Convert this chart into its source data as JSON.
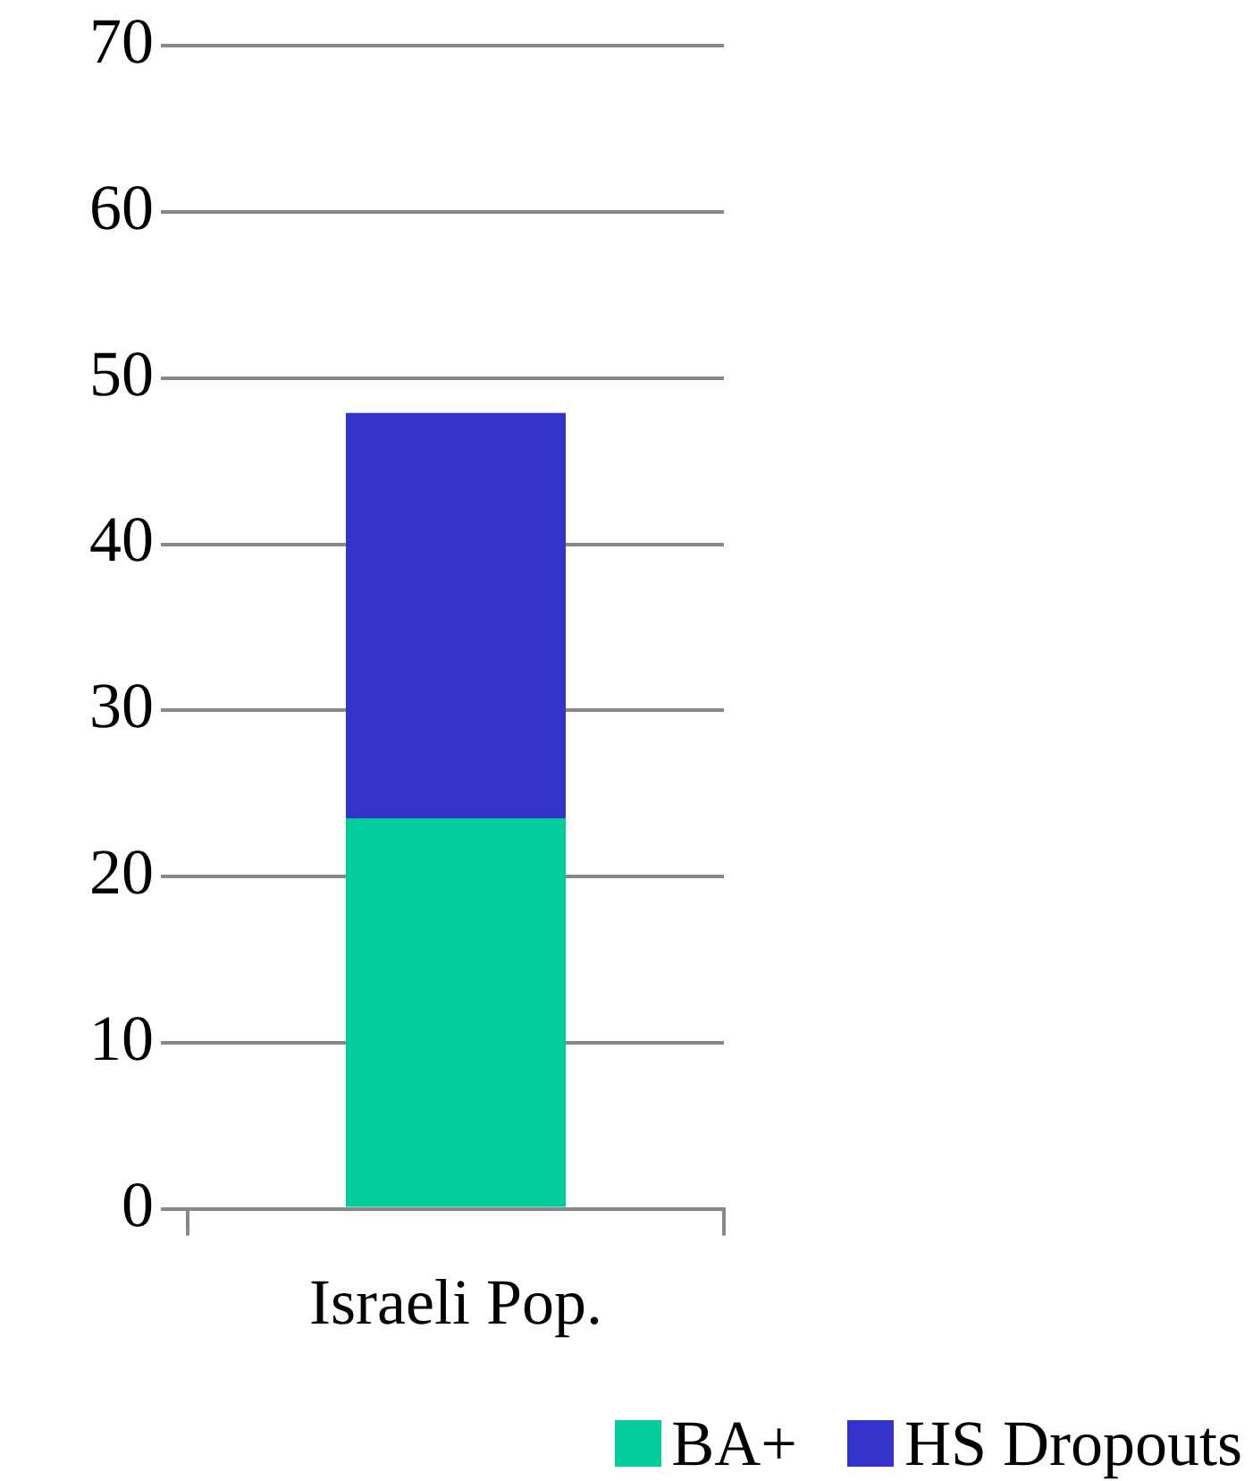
{
  "chart_data": {
    "type": "bar",
    "categories": [
      "Israeli Pop."
    ],
    "stacked": true,
    "series": [
      {
        "name": "BA+",
        "color": "#00cc99",
        "values": [
          23.5
        ]
      },
      {
        "name": "HS Dropouts",
        "color": "#3333cc",
        "values": [
          24.4
        ]
      }
    ],
    "ylim": [
      0,
      70
    ],
    "yticks": [
      0,
      10,
      20,
      30,
      40,
      50,
      60,
      70
    ],
    "grid": "y",
    "legend": "bottom right"
  }
}
